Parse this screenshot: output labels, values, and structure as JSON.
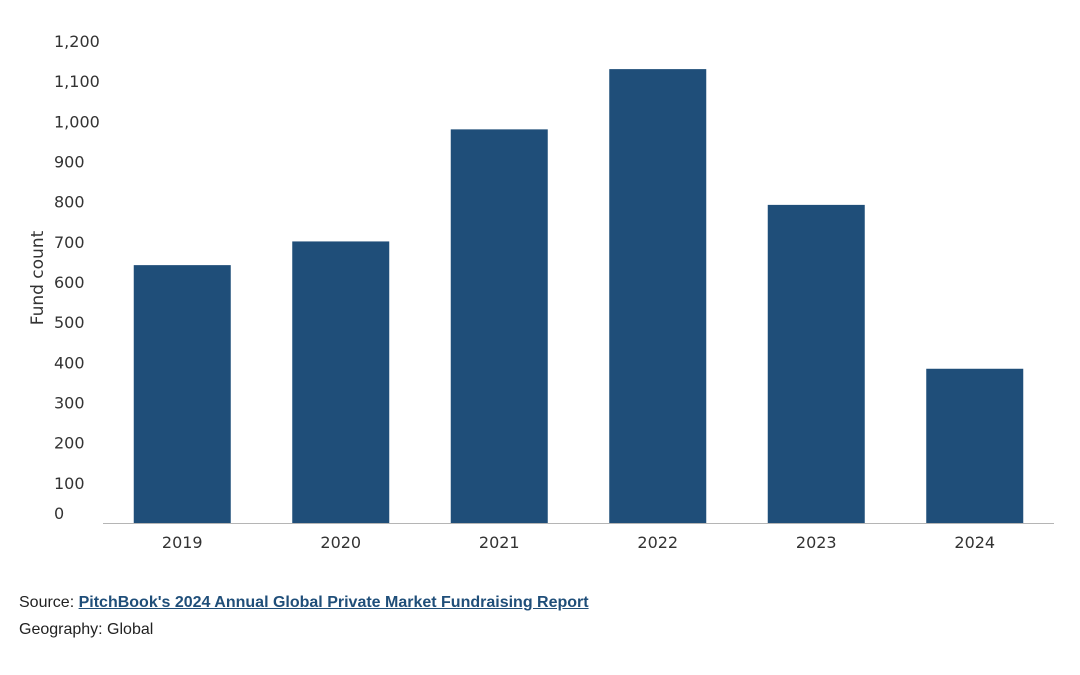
{
  "chart_data": {
    "type": "bar",
    "title": "",
    "xlabel": "",
    "ylabel": "Fund count",
    "categories": [
      "2019",
      "2020",
      "2021",
      "2022",
      "2023",
      "2024"
    ],
    "values": [
      642,
      701,
      980,
      1130,
      792,
      384
    ],
    "ylim": [
      0,
      1200
    ],
    "yticks": [
      0,
      100,
      200,
      300,
      400,
      500,
      600,
      700,
      800,
      900,
      1000,
      1100,
      1200
    ],
    "ytick_labels": [
      "0",
      "100",
      "200",
      "300",
      "400",
      "500",
      "600",
      "700",
      "800",
      "900",
      "1,000",
      "1,100",
      "1,200"
    ],
    "grid": false,
    "bar_color": "#1f4e79",
    "axis_color": "#b5b5b5"
  },
  "footer": {
    "source_prefix": "Source: ",
    "source_link_text": "PitchBook's 2024 Annual Global Private Market Fundraising Report",
    "geography": "Geography: Global"
  }
}
